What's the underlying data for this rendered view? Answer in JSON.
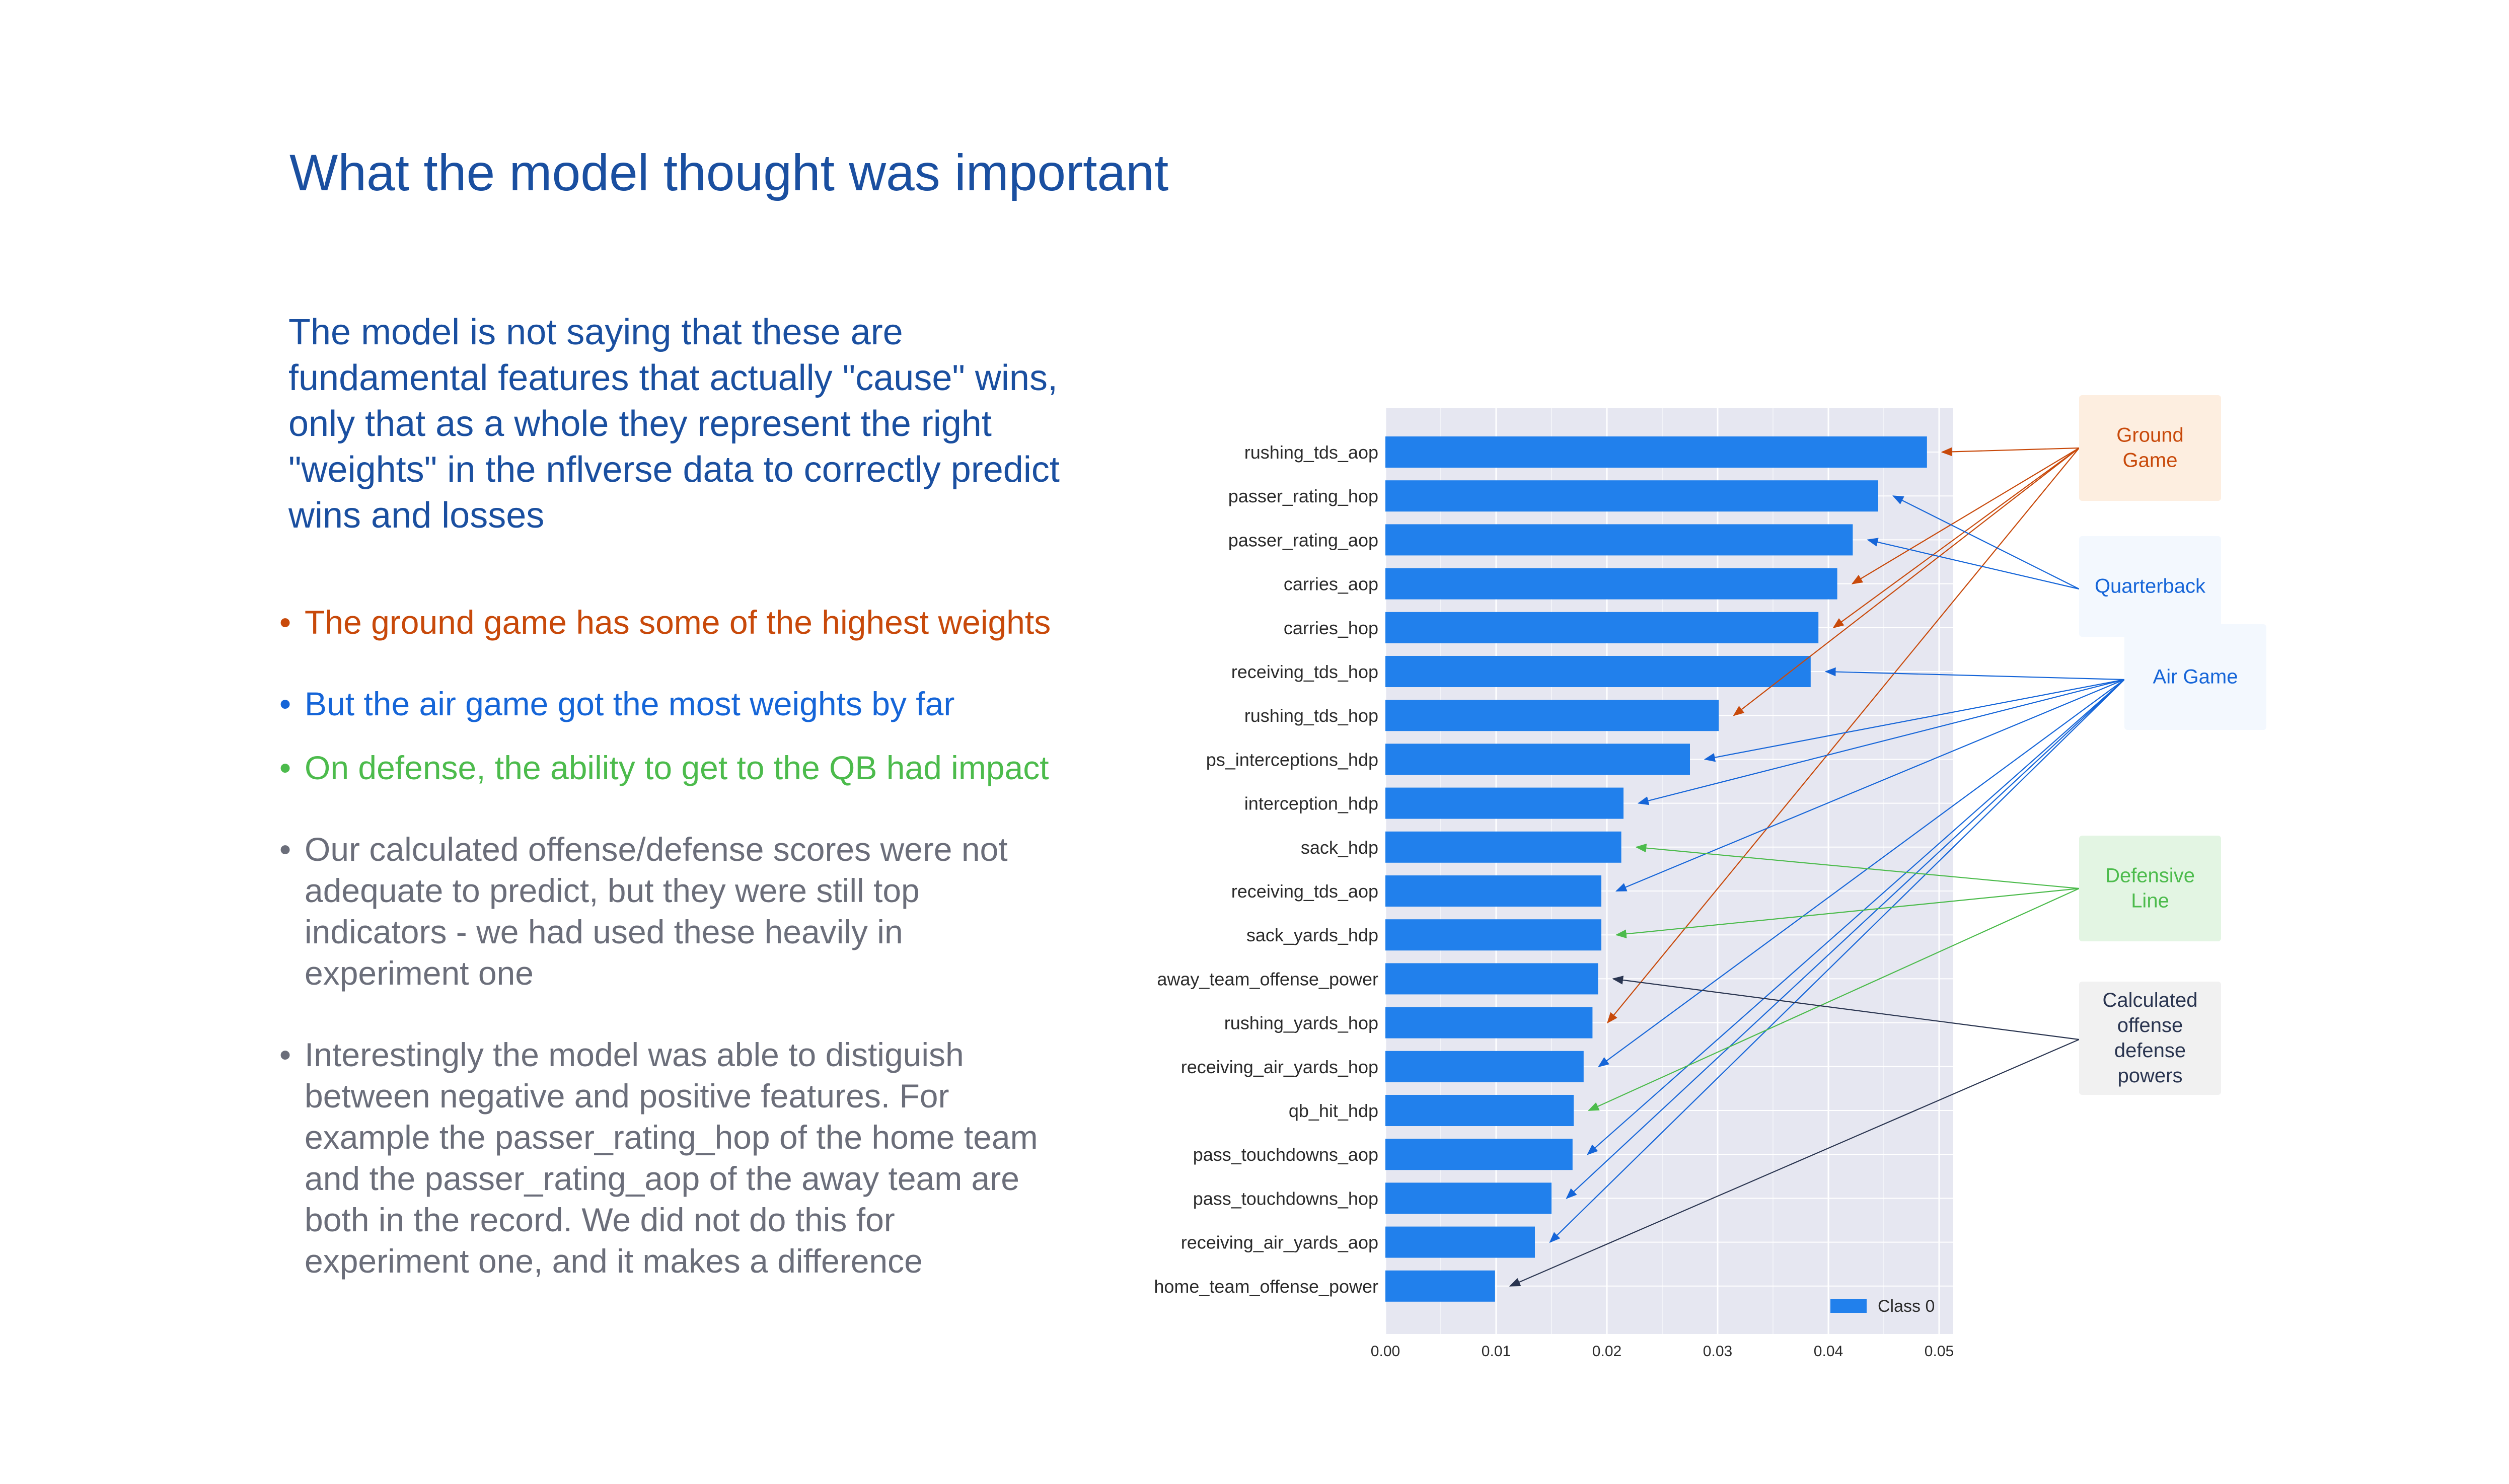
{
  "slide": {
    "title": "What the model thought was important",
    "intro": "The model is not saying that these are fundamental features that actually \"cause\" wins, only that as a whole they represent the right \"weights\" in the nflverse data to correctly predict wins and losses"
  },
  "bullets": [
    {
      "text": "The ground game has some of the highest weights",
      "color": "#c8490a"
    },
    {
      "text": "But the air game got the most weights by far",
      "color": "#1565d8"
    },
    {
      "text": "On defense, the ability to get to the QB had impact",
      "color": "#4cbb4c"
    },
    {
      "text": "Our calculated offense/defense scores were not adequate to predict, but they were still top indicators - we had used these heavily in experiment one",
      "color": "#6b6e7a"
    },
    {
      "text": "Interestingly the model was able to distiguish between negative and positive features.  For example the passer_rating_hop of the home team and the passer_rating_aop of the away team are both in the record.  We did not do this for experiment one, and it makes a difference",
      "color": "#6b6e7a"
    }
  ],
  "chart_data": {
    "type": "bar",
    "orientation": "horizontal",
    "categories": [
      "rushing_tds_aop",
      "passer_rating_hop",
      "passer_rating_aop",
      "carries_aop",
      "carries_hop",
      "receiving_tds_hop",
      "rushing_tds_hop",
      "ps_interceptions_hdp",
      "interception_hdp",
      "sack_hdp",
      "receiving_tds_aop",
      "sack_yards_hdp",
      "away_team_offense_power",
      "rushing_yards_hop",
      "receiving_air_yards_hop",
      "qb_hit_hdp",
      "pass_touchdowns_aop",
      "pass_touchdowns_hop",
      "receiving_air_yards_aop",
      "home_team_offense_power"
    ],
    "series": [
      {
        "name": "Class 0",
        "values": [
          0.0489,
          0.0445,
          0.0422,
          0.0408,
          0.0391,
          0.0384,
          0.0301,
          0.0275,
          0.0215,
          0.0213,
          0.0195,
          0.0195,
          0.0192,
          0.0187,
          0.0179,
          0.017,
          0.0169,
          0.015,
          0.0135,
          0.0099
        ]
      }
    ],
    "xlim": [
      0,
      0.051
    ],
    "xticks": [
      "0.00",
      "0.01",
      "0.02",
      "0.03",
      "0.04",
      "0.05"
    ],
    "xtick_values": [
      0,
      0.01,
      0.02,
      0.03,
      0.04,
      0.05
    ],
    "grid": true,
    "legend_position": "bottom-right",
    "colors": {
      "bar": "#2180ec",
      "plot_bg": "#e6e7f1"
    }
  },
  "annotations": [
    {
      "label": "Ground Game",
      "color": "#c8490a",
      "bg": "#fdeee0",
      "targets": [
        0,
        3,
        4,
        6,
        13
      ]
    },
    {
      "label": "Quarterback",
      "color": "#1565d8",
      "bg": "#f3f8fe",
      "targets": [
        1,
        2
      ]
    },
    {
      "label": "Air Game",
      "color": "#1565d8",
      "bg": "#f3f8fe",
      "targets": [
        5,
        7,
        8,
        10,
        14,
        16,
        17,
        18
      ]
    },
    {
      "label": "Defensive Line",
      "color": "#4cbb4c",
      "bg": "#e3f5e3",
      "targets": [
        9,
        11,
        15
      ]
    },
    {
      "label": "Calculated offense defense powers",
      "color": "#2a3550",
      "bg": "#f1f1f1",
      "targets": [
        12,
        19
      ]
    }
  ]
}
